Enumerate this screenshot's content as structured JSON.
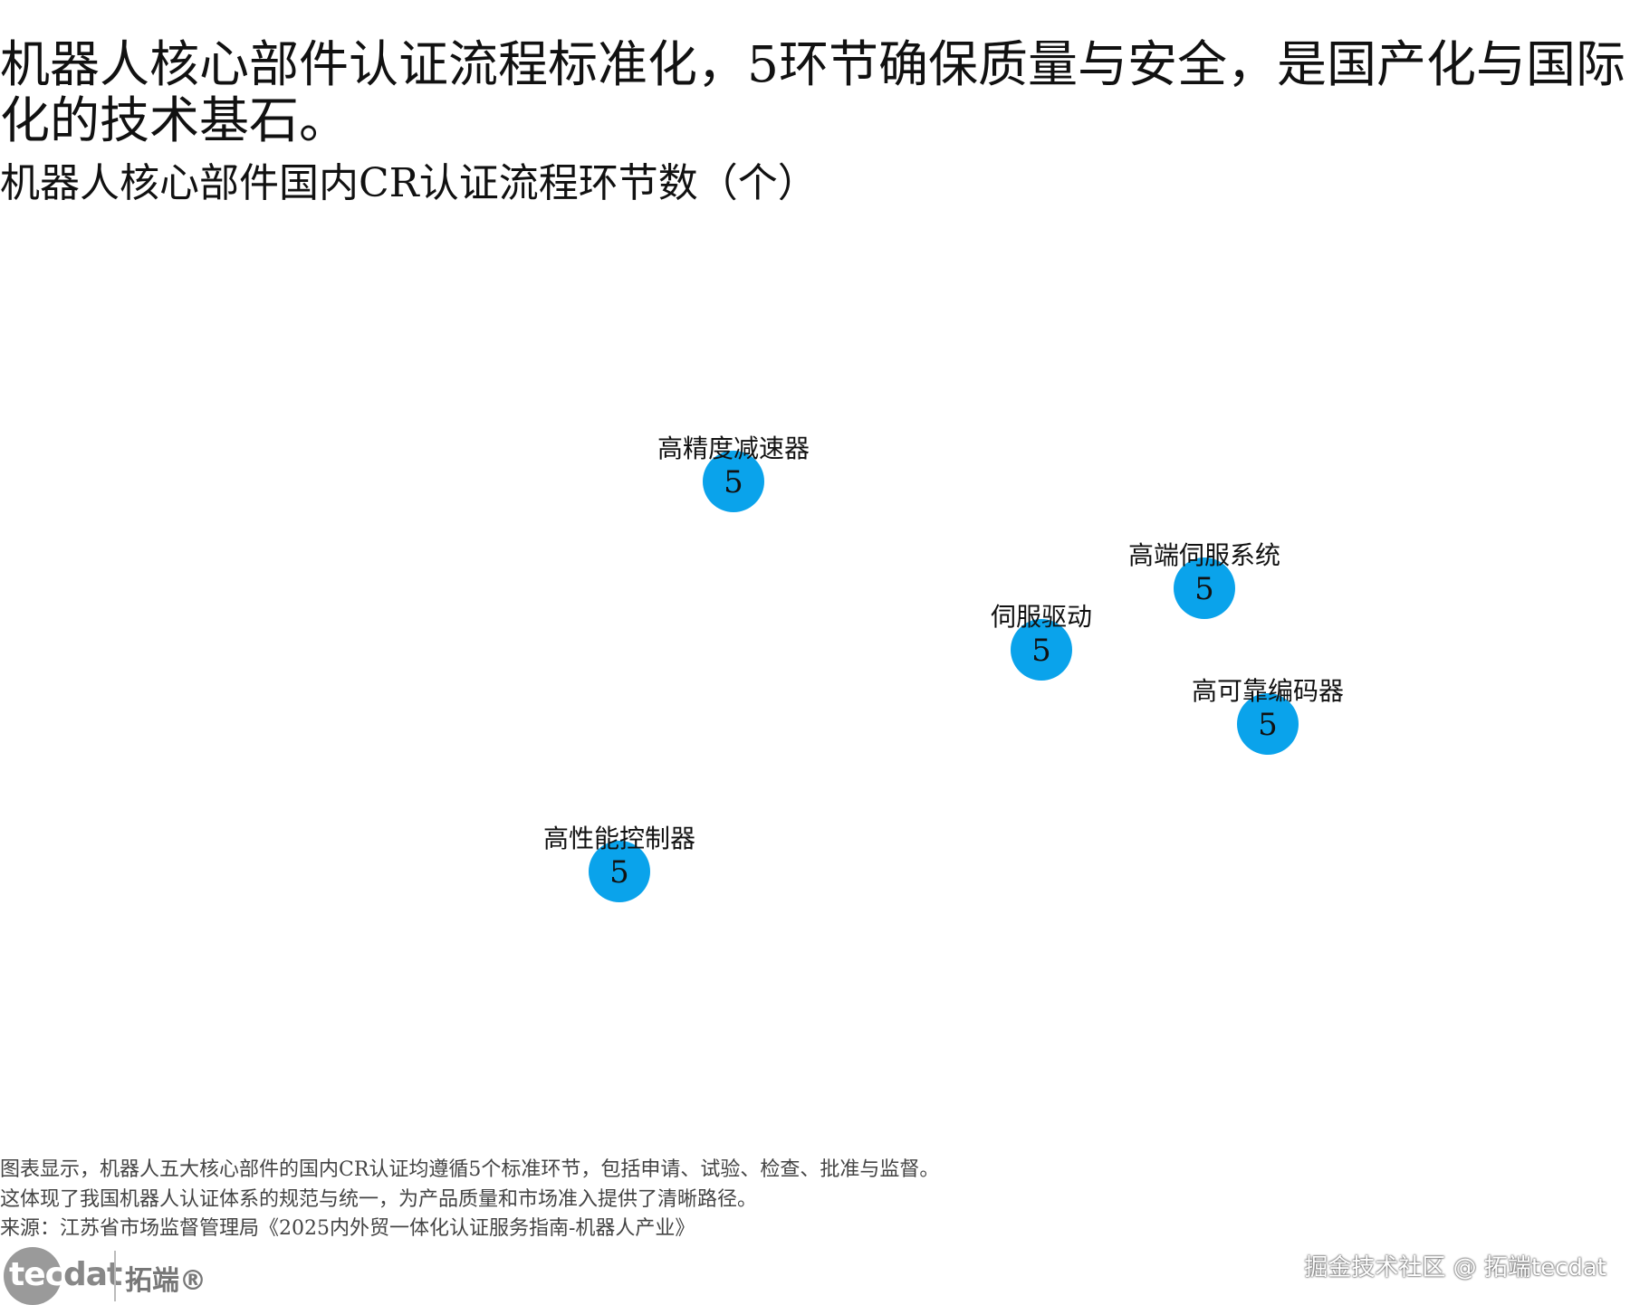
{
  "title": "机器人核心部件认证流程标准化，5环节确保质量与安全，是国产化与国际化的技术基石。",
  "subtitle": "机器人核心部件国内CR认证流程环节数（个）",
  "chart_data": {
    "type": "scatter",
    "encoding": "bubble",
    "title": "机器人核心部件国内CR认证流程环节数（个）",
    "axes_visible": false,
    "grid": false,
    "color": "#0AA3EB",
    "points": [
      {
        "label": "高精度减速器",
        "value": 5
      },
      {
        "label": "伺服驱动",
        "value": 5
      },
      {
        "label": "高端伺服系统",
        "value": 5
      },
      {
        "label": "高可靠编码器",
        "value": 5
      },
      {
        "label": "高性能控制器",
        "value": 5
      }
    ]
  },
  "notes": [
    "图表显示，机器人五大核心部件的国内CR认证均遵循5个标准环节，包括申请、试验、检查、批准与监督。",
    "这体现了我国机器人认证体系的规范与统一，为产品质量和市场准入提供了清晰路径。",
    "来源：江苏省市场监督管理局《2025内外贸一体化认证服务指南-机器人产业》"
  ],
  "logo": {
    "text_a": "tec",
    "text_b": "dat",
    "cn": "拓端®"
  },
  "watermark": "掘金技术社区 @ 拓端tecdat"
}
